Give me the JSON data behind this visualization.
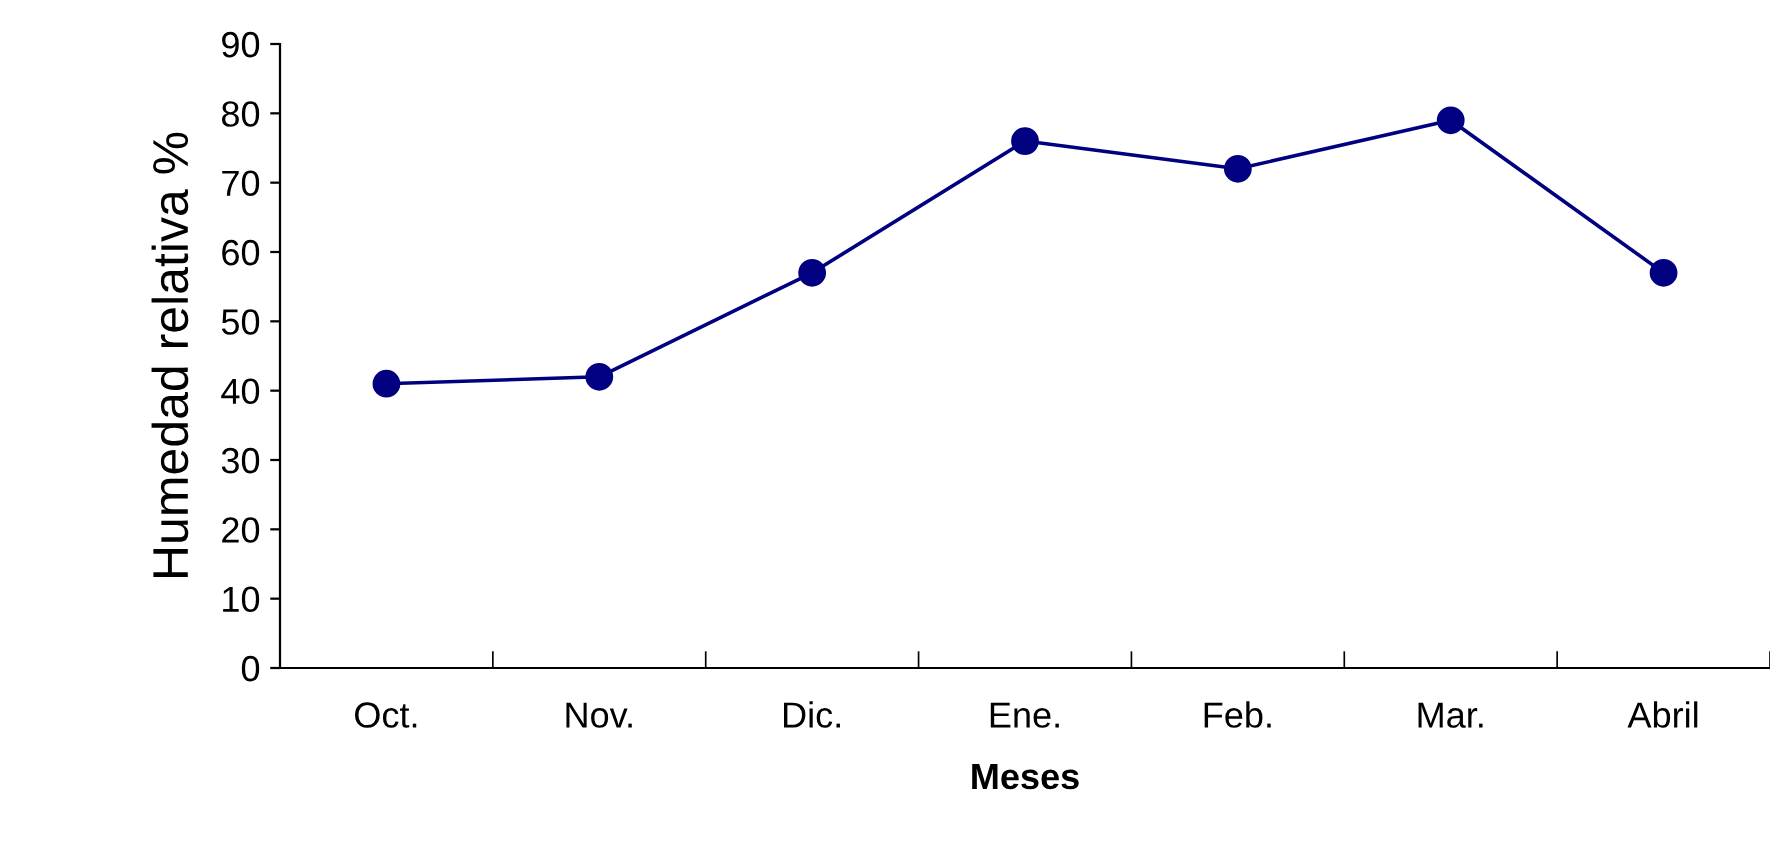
{
  "chart_data": {
    "type": "line",
    "xlabel": "Meses",
    "ylabel": "Humedad relativa %",
    "categories": [
      "Oct.",
      "Nov.",
      "Dic.",
      "Ene.",
      "Feb.",
      "Mar.",
      "Abril"
    ],
    "series": [
      {
        "color": "#000080",
        "values": [
          41,
          42,
          57,
          76,
          72,
          79,
          57
        ]
      }
    ],
    "ylim": [
      0,
      90
    ],
    "yticks": [
      0,
      10,
      20,
      30,
      40,
      50,
      60,
      70,
      80,
      90
    ],
    "marker": "circle",
    "line_style": "solid",
    "grid": false,
    "legend": false
  }
}
